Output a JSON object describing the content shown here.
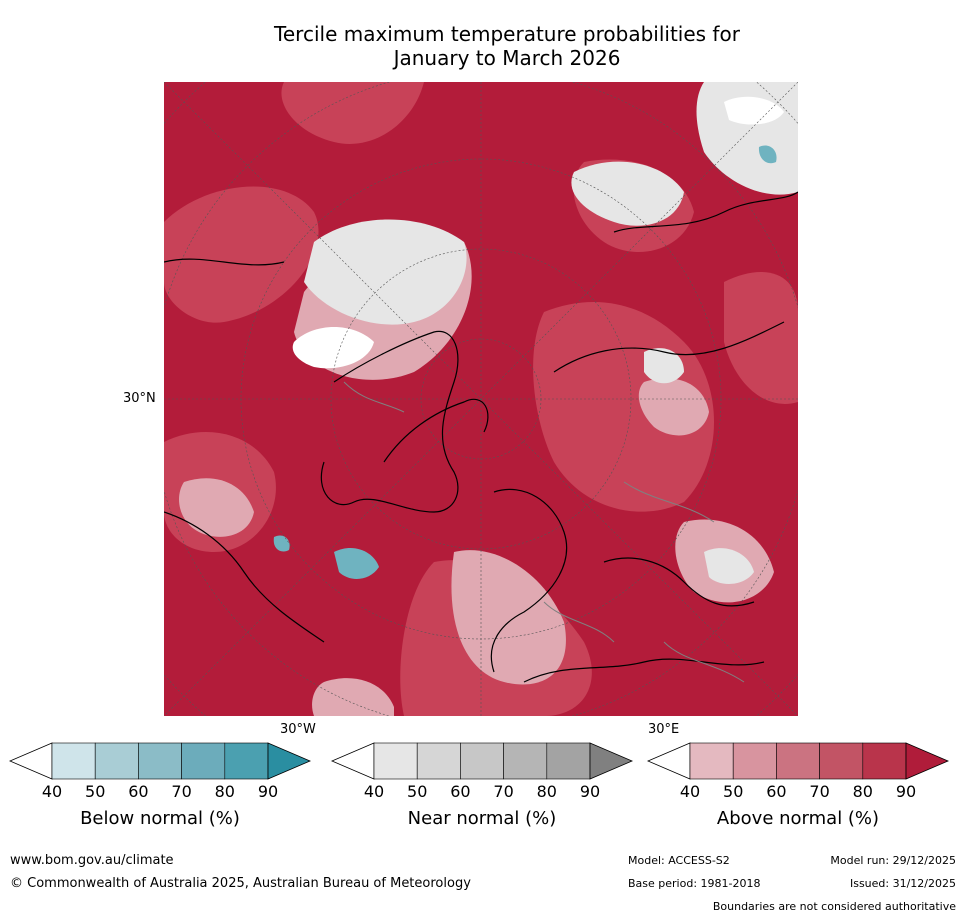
{
  "title_line1": "Tercile maximum temperature probabilities for",
  "title_line2": "January to March 2026",
  "map": {
    "lat_label": "30°N",
    "lon_labels": [
      "30°W",
      "30°E"
    ],
    "colors": {
      "above_dark": "#b31c3a",
      "above_mid": "#c84258",
      "above_light": "#e0a9b2",
      "near": "#e6e6e6",
      "below": "#6fb3c0",
      "coast": "#000000",
      "border": "#808080"
    }
  },
  "colorbars": [
    {
      "label": "Below normal (%)",
      "ticks": [
        "40",
        "50",
        "60",
        "70",
        "80",
        "90"
      ],
      "colors": [
        "#ffffff",
        "#cfe4ea",
        "#a9cdd5",
        "#8bbcc7",
        "#6cacbb",
        "#4ba0b0",
        "#2a8ea1"
      ]
    },
    {
      "label": "Near normal (%)",
      "ticks": [
        "40",
        "50",
        "60",
        "70",
        "80",
        "90"
      ],
      "colors": [
        "#ffffff",
        "#e6e6e6",
        "#d6d6d6",
        "#c7c7c7",
        "#b5b5b5",
        "#a3a3a3",
        "#808080"
      ]
    },
    {
      "label": "Above normal (%)",
      "ticks": [
        "40",
        "50",
        "60",
        "70",
        "80",
        "90"
      ],
      "colors": [
        "#ffffff",
        "#e4b9c0",
        "#d8949f",
        "#cb7381",
        "#c25465",
        "#b9344b",
        "#b01c3a"
      ]
    }
  ],
  "footer": {
    "website": "www.bom.gov.au/climate",
    "copyright": "© Commonwealth of Australia 2025, Australian Bureau of Meteorology",
    "model": "Model: ACCESS-S2",
    "model_run": "Model run: 29/12/2025",
    "base_period": "Base period: 1981-2018",
    "issued": "Issued: 31/12/2025",
    "disclaimer": "Boundaries are not considered authoritative"
  }
}
